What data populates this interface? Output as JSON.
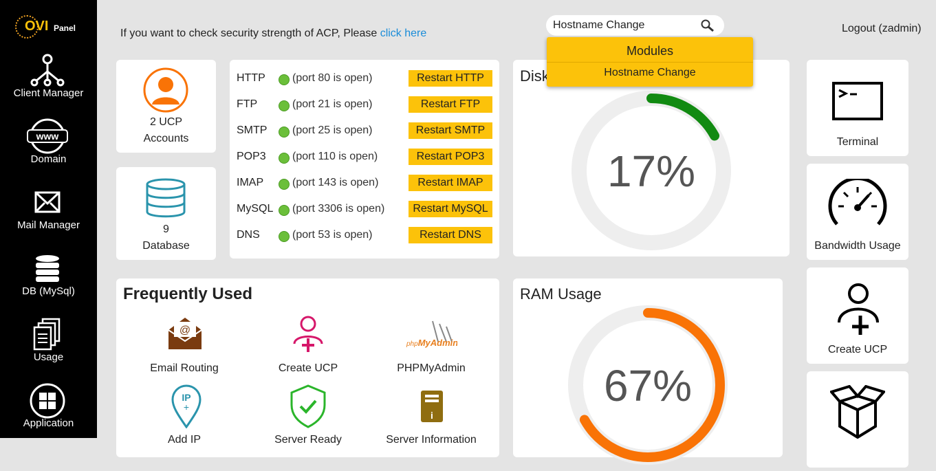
{
  "logo": {
    "part1": "OVI",
    "part2": "Panel"
  },
  "sidebar": {
    "items": [
      "Client Manager",
      "Domain",
      "Mail Manager",
      "DB (MySql)",
      "Usage",
      "Application"
    ]
  },
  "top": {
    "notice": "If you want to check security strength of ACP, Please",
    "link": "click here",
    "search": "Hostname Change",
    "logout": "Logout (zadmin)"
  },
  "dropdown": {
    "header": "Modules",
    "items": [
      "Hostname Change"
    ]
  },
  "accounts": {
    "count": "2 UCP",
    "label": "Accounts"
  },
  "database": {
    "count": "9",
    "label": "Database"
  },
  "services": [
    {
      "name": "HTTP",
      "status": "(port 80 is open)",
      "button": "Restart HTTP"
    },
    {
      "name": "FTP",
      "status": "(port 21 is open)",
      "button": "Restart FTP"
    },
    {
      "name": "SMTP",
      "status": "(port 25 is open)",
      "button": "Restart SMTP"
    },
    {
      "name": "POP3",
      "status": "(port 110 is open)",
      "button": "Restart POP3"
    },
    {
      "name": "IMAP",
      "status": "(port 143 is open)",
      "button": "Restart IMAP"
    },
    {
      "name": "MySQL",
      "status": "(port 3306 is open)",
      "button": "Restart MySQL"
    },
    {
      "name": "DNS",
      "status": "(port 53 is open)",
      "button": "Restart DNS"
    }
  ],
  "gauges": {
    "disk": {
      "title": "Disk Usage",
      "value": 17,
      "value_label": "17%",
      "color": "#118a11"
    },
    "ram": {
      "title": "RAM Usage",
      "value": 67,
      "value_label": "67%",
      "color": "#f97306"
    }
  },
  "frequent": {
    "title": "Frequently Used",
    "items": [
      "Email Routing",
      "Create UCP",
      "PHPMyAdmin",
      "Add IP",
      "Server Ready",
      "Server Information"
    ]
  },
  "tiles": [
    "Terminal",
    "Bandwidth Usage",
    "Create UCP"
  ]
}
